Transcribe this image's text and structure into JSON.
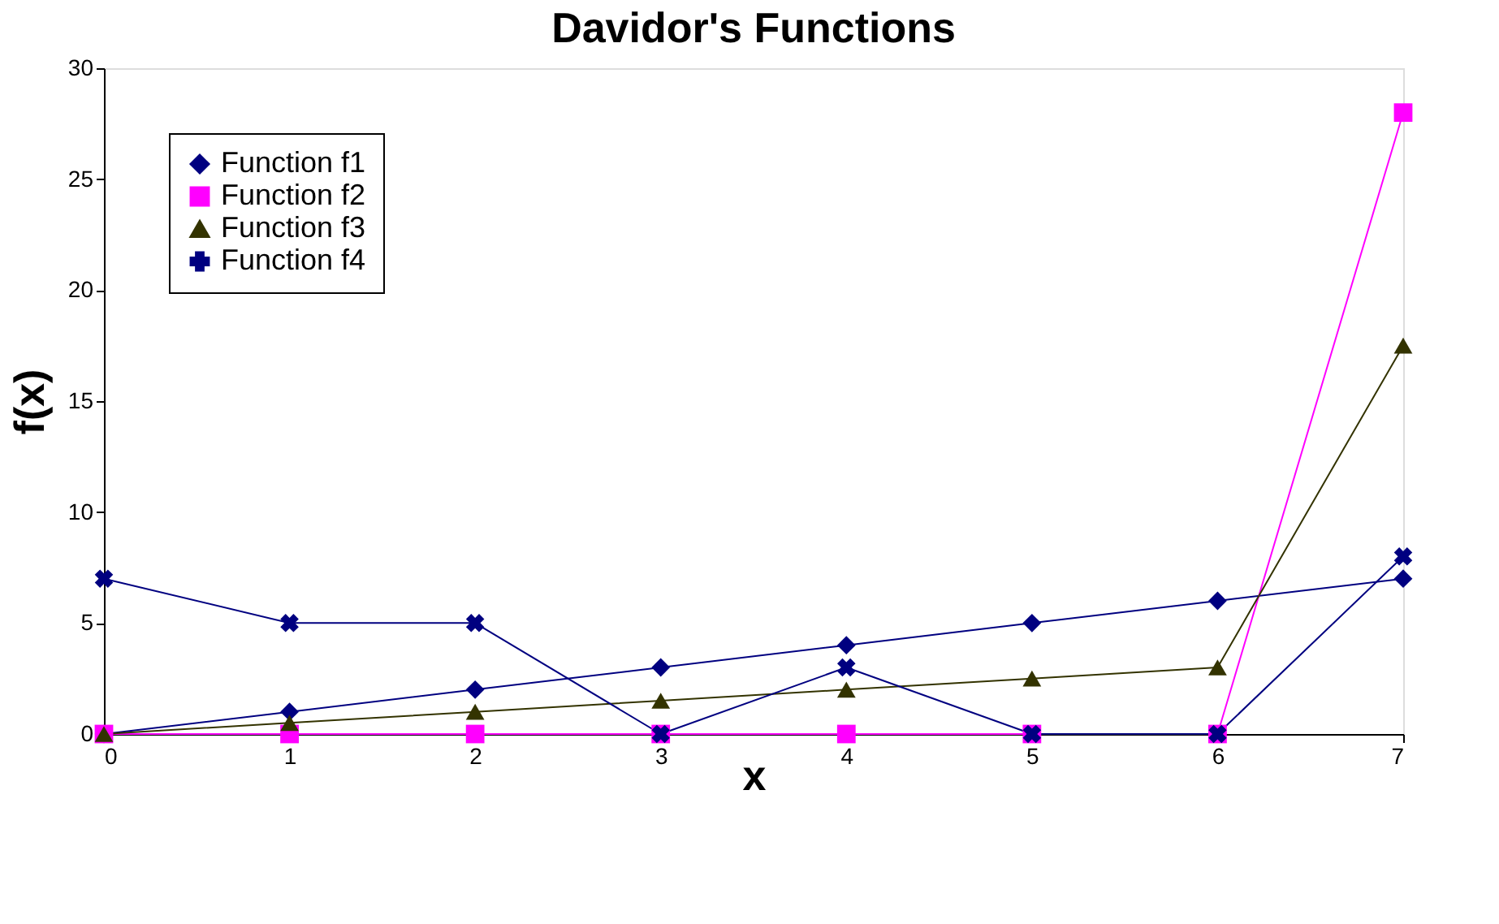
{
  "chart_data": {
    "type": "line",
    "title": "Davidor's Functions",
    "xlabel": "x",
    "ylabel": "f(x)",
    "x": [
      0,
      1,
      2,
      3,
      4,
      5,
      6,
      7
    ],
    "series": [
      {
        "name": "Function f1",
        "color": "#000080",
        "marker": "diamond",
        "values": [
          0,
          1,
          2,
          3,
          4,
          5,
          6,
          7
        ]
      },
      {
        "name": "Function f2",
        "color": "#ff00ff",
        "marker": "square",
        "values": [
          0,
          0,
          0,
          0,
          0,
          0,
          0,
          28
        ]
      },
      {
        "name": "Function f3",
        "color": "#333300",
        "marker": "triangle",
        "values": [
          0,
          0.5,
          1,
          1.5,
          2,
          2.5,
          3,
          17.5
        ]
      },
      {
        "name": "Function f4",
        "color": "#000080",
        "marker": "cross",
        "values": [
          7,
          5,
          5,
          0,
          3,
          0,
          0,
          8
        ]
      }
    ],
    "xlim": [
      0,
      7
    ],
    "xticks": [
      0,
      1,
      2,
      3,
      4,
      5,
      6,
      7
    ],
    "ylim": [
      0,
      30
    ],
    "yticks": [
      0,
      5,
      10,
      15,
      20,
      25,
      30
    ],
    "grid": false,
    "legend": "top left",
    "line_style": "solid"
  }
}
